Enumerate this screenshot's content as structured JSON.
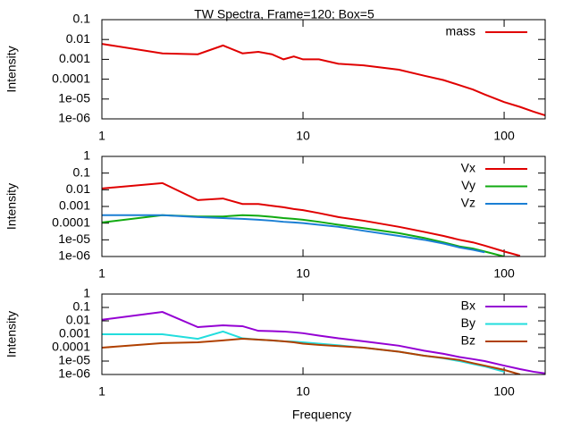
{
  "chart_data": [
    {
      "type": "line",
      "title": "TW Spectra, Frame=120; Box=5",
      "ylabel": "Intensity",
      "xlog": true,
      "ylog": true,
      "legend": "upper right",
      "x": [
        1,
        2,
        3,
        4,
        5,
        6,
        7,
        8,
        9,
        10,
        12,
        15,
        20,
        30,
        40,
        50,
        60,
        70,
        80,
        100,
        120,
        140,
        160
      ],
      "xlim": [
        1,
        160
      ],
      "xticks": [
        1,
        10,
        100
      ],
      "ylim": [
        1e-06,
        0.1
      ],
      "yticks": [
        {
          "value": 1e-06,
          "label": "1e-06"
        },
        {
          "value": 1e-05,
          "label": "1e-05"
        },
        0.0001,
        0.001,
        0.01,
        0.1
      ],
      "series": [
        {
          "name": "mass",
          "color": "#e00000",
          "values": [
            0.006,
            0.002,
            0.0018,
            0.005,
            0.002,
            0.0024,
            0.0018,
            0.001,
            0.0014,
            0.001,
            0.001,
            0.0006,
            0.0005,
            0.0003,
            0.00015,
            9e-05,
            5e-05,
            3e-05,
            1.7e-05,
            7e-06,
            4e-06,
            2.3e-06,
            1.5e-06
          ]
        }
      ]
    },
    {
      "type": "line",
      "ylabel": "Intensity",
      "xlog": true,
      "ylog": true,
      "legend": "upper right",
      "x": [
        1,
        2,
        3,
        4,
        5,
        6,
        7,
        8,
        9,
        10,
        12,
        15,
        20,
        30,
        40,
        50,
        60,
        70,
        80,
        100,
        120,
        140,
        160
      ],
      "xlim": [
        1,
        160
      ],
      "xticks": [
        1,
        10,
        100
      ],
      "ylim": [
        1e-06,
        1
      ],
      "yticks": [
        {
          "value": 1e-06,
          "label": "1e-06"
        },
        {
          "value": 1e-05,
          "label": "1e-05"
        },
        0.0001,
        0.001,
        0.01,
        0.1,
        1
      ],
      "series": [
        {
          "name": "Vx",
          "color": "#e00000",
          "values": [
            0.012,
            0.025,
            0.0024,
            0.003,
            0.0014,
            0.0014,
            0.0011,
            0.0009,
            0.0007,
            0.0006,
            0.0004,
            0.00023,
            0.00014,
            6e-05,
            3e-05,
            1.7e-05,
            1e-05,
            7e-06,
            4.5e-06,
            2e-06,
            1.1e-06,
            null,
            null
          ]
        },
        {
          "name": "Vy",
          "color": "#11aa11",
          "values": [
            0.00011,
            0.0003,
            0.00025,
            0.00025,
            0.0003,
            0.00028,
            0.00024,
            0.0002,
            0.00018,
            0.00016,
            0.00012,
            8e-05,
            5e-05,
            2.5e-05,
            1.3e-05,
            7e-06,
            4e-06,
            3e-06,
            2e-06,
            1e-06,
            null,
            null,
            null
          ]
        },
        {
          "name": "Vz",
          "color": "#1a7fd4",
          "values": [
            0.0003,
            0.0003,
            0.00023,
            0.0002,
            0.00018,
            0.00016,
            0.00014,
            0.00012,
            0.00011,
            0.0001,
            8e-05,
            6e-05,
            3.5e-05,
            1.7e-05,
            1e-05,
            6e-06,
            3.5e-06,
            2.5e-06,
            1.8e-06,
            null,
            null,
            null,
            null
          ]
        }
      ]
    },
    {
      "type": "line",
      "ylabel": "Intensity",
      "xlabel": "Frequency",
      "xlog": true,
      "ylog": true,
      "legend": "upper right",
      "x": [
        1,
        2,
        3,
        4,
        5,
        6,
        7,
        8,
        9,
        10,
        12,
        15,
        20,
        30,
        40,
        50,
        60,
        70,
        80,
        100,
        120,
        140,
        160
      ],
      "xlim": [
        1,
        160
      ],
      "xticks": [
        1,
        10,
        100
      ],
      "ylim": [
        1e-06,
        1
      ],
      "yticks": [
        {
          "value": 1e-06,
          "label": "1e-06"
        },
        {
          "value": 1e-05,
          "label": "1e-05"
        },
        0.0001,
        0.001,
        0.01,
        0.1,
        1
      ],
      "series": [
        {
          "name": "Bx",
          "color": "#9400d3",
          "values": [
            0.012,
            0.046,
            0.0034,
            0.0046,
            0.004,
            0.0018,
            0.0017,
            0.0016,
            0.0014,
            0.0012,
            0.0008,
            0.0005,
            0.0003,
            0.00014,
            6e-05,
            3.5e-05,
            2e-05,
            1.4e-05,
            1e-05,
            4.6e-06,
            2.5e-06,
            1.6e-06,
            1.2e-06
          ]
        },
        {
          "name": "By",
          "color": "#22dddd",
          "values": [
            0.001,
            0.001,
            0.00046,
            0.0016,
            0.0005,
            0.0004,
            0.00035,
            0.0003,
            0.00028,
            0.00025,
            0.0002,
            0.00015,
            0.0001,
            5e-05,
            2.5e-05,
            1.6e-05,
            1e-05,
            6e-06,
            4e-06,
            1.6e-06,
            null,
            null,
            null
          ]
        },
        {
          "name": "Bz",
          "color": "#b04000",
          "values": [
            0.0001,
            0.00022,
            0.00025,
            0.00035,
            0.00046,
            0.0004,
            0.00035,
            0.0003,
            0.00025,
            0.0002,
            0.00016,
            0.00013,
            0.0001,
            5e-05,
            2.5e-05,
            1.7e-05,
            1.2e-05,
            7e-06,
            4.6e-06,
            2.2e-06,
            1e-06,
            null,
            null
          ]
        }
      ]
    }
  ]
}
